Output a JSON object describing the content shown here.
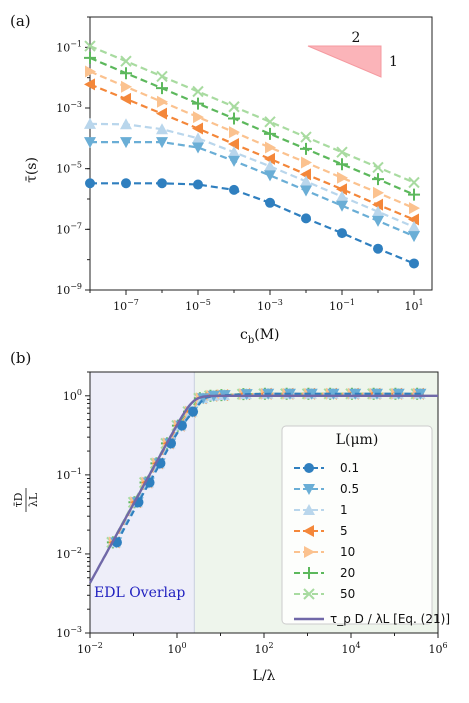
{
  "chart_data": [
    {
      "type": "line",
      "panel_label": "(a)",
      "xlabel": "c_b(M)",
      "ylabel": "τ̄(s)",
      "xscale": "log",
      "yscale": "log",
      "xlim": [
        1e-08,
        31.6
      ],
      "ylim": [
        1e-09,
        1.0
      ],
      "xticks": [
        1e-07,
        1e-05,
        0.001,
        0.1,
        10
      ],
      "xtick_labels": [
        "10^-7",
        "10^-5",
        "10^-3",
        "10^-1",
        "10^1"
      ],
      "yticks": [
        1e-09,
        1e-07,
        1e-05,
        0.001,
        0.1
      ],
      "ytick_labels": [
        "10^-9",
        "10^-7",
        "10^-5",
        "10^-3",
        "10^-1"
      ],
      "x": [
        1e-08,
        1e-07,
        1e-06,
        1e-05,
        0.0001,
        0.001,
        0.01,
        0.1,
        1,
        10
      ],
      "series": [
        {
          "key": "0.1",
          "color": "#2f7fbf",
          "marker": "circle",
          "values": [
            3.3e-06,
            3.3e-06,
            3.3e-06,
            3e-06,
            2e-06,
            7.5e-07,
            2.3e-07,
            7.5e-08,
            2.3e-08,
            7.5e-09
          ]
        },
        {
          "key": "0.5",
          "color": "#6aaed6",
          "marker": "tri_down",
          "values": [
            7.5e-05,
            7.5e-05,
            7.5e-05,
            5e-05,
            1.8e-05,
            6e-06,
            1.9e-06,
            6e-07,
            1.9e-07,
            6e-08
          ]
        },
        {
          "key": "1",
          "color": "#b9d6ec",
          "marker": "tri_up",
          "values": [
            0.0003,
            0.00029,
            0.0002,
            0.0001,
            3.5e-05,
            1.2e-05,
            3.8e-06,
            1.2e-06,
            3.8e-07,
            1.2e-07
          ]
        },
        {
          "key": "5",
          "color": "#f4873a",
          "marker": "tri_left",
          "values": [
            0.006,
            0.002,
            0.00065,
            0.00021,
            6.5e-05,
            2.1e-05,
            6.5e-06,
            2.1e-06,
            6.5e-07,
            2.1e-07
          ]
        },
        {
          "key": "10",
          "color": "#fbc28f",
          "marker": "tri_right",
          "values": [
            0.016,
            0.005,
            0.0016,
            0.0005,
            0.00016,
            5e-05,
            1.6e-05,
            5e-06,
            1.6e-06,
            5e-07
          ]
        },
        {
          "key": "20",
          "color": "#5cb85c",
          "marker": "plus",
          "values": [
            0.045,
            0.014,
            0.0045,
            0.0014,
            0.00045,
            0.00014,
            4.5e-05,
            1.4e-05,
            4.5e-06,
            1.4e-06
          ]
        },
        {
          "key": "50",
          "color": "#a8dba0",
          "marker": "x",
          "values": [
            0.11,
            0.035,
            0.011,
            0.0035,
            0.0011,
            0.00035,
            0.00011,
            3.5e-05,
            1.1e-05,
            3.5e-06
          ]
        }
      ],
      "slope_annotation": {
        "run_label": "2",
        "rise_label": "1",
        "color": "#fbb4b9"
      }
    },
    {
      "type": "line",
      "panel_label": "(b)",
      "xlabel": "L/λ",
      "ylabel": "τ̄D / λL",
      "xscale": "log",
      "yscale": "log",
      "xlim": [
        0.01,
        1000000.0
      ],
      "ylim": [
        0.001,
        2.0
      ],
      "xticks": [
        0.01,
        1,
        100,
        10000.0,
        1000000.0
      ],
      "xtick_labels": [
        "10^-2",
        "10^0",
        "10^2",
        "10^4",
        "10^6"
      ],
      "yticks": [
        0.001,
        0.01,
        0.1,
        1
      ],
      "ytick_labels": [
        "10^-3",
        "10^-2",
        "10^-1",
        "10^0"
      ],
      "regions": [
        {
          "label": "EDL Overlap",
          "x_range": [
            0.01,
            2.5
          ],
          "color": "#eeeef9"
        },
        {
          "label": "",
          "x_range": [
            2.5,
            1000000.0
          ],
          "color": "#eef5ec"
        }
      ],
      "overlap_color": "#2020c0",
      "legend": {
        "title": "L(μm)",
        "entries": [
          "0.1",
          "0.5",
          "1",
          "5",
          "10",
          "20",
          "50"
        ],
        "equation_label": "τ_p D / λL [Eq. (21)]",
        "placement": "right"
      },
      "equation_curve": {
        "color": "#7068a8"
      },
      "scatter_x": [
        0.032,
        0.1,
        0.18,
        0.32,
        0.56,
        1.0,
        1.8,
        3.2,
        5.6,
        10,
        32,
        100,
        316,
        1000,
        3160,
        10000.0,
        31600.0,
        100000.0,
        316000.0
      ],
      "scatter_y": [
        0.014,
        0.045,
        0.08,
        0.14,
        0.25,
        0.42,
        0.63,
        0.93,
        1.0,
        1.02,
        1.05,
        1.06,
        1.06,
        1.06,
        1.06,
        1.06,
        1.06,
        1.06,
        1.06
      ]
    }
  ]
}
